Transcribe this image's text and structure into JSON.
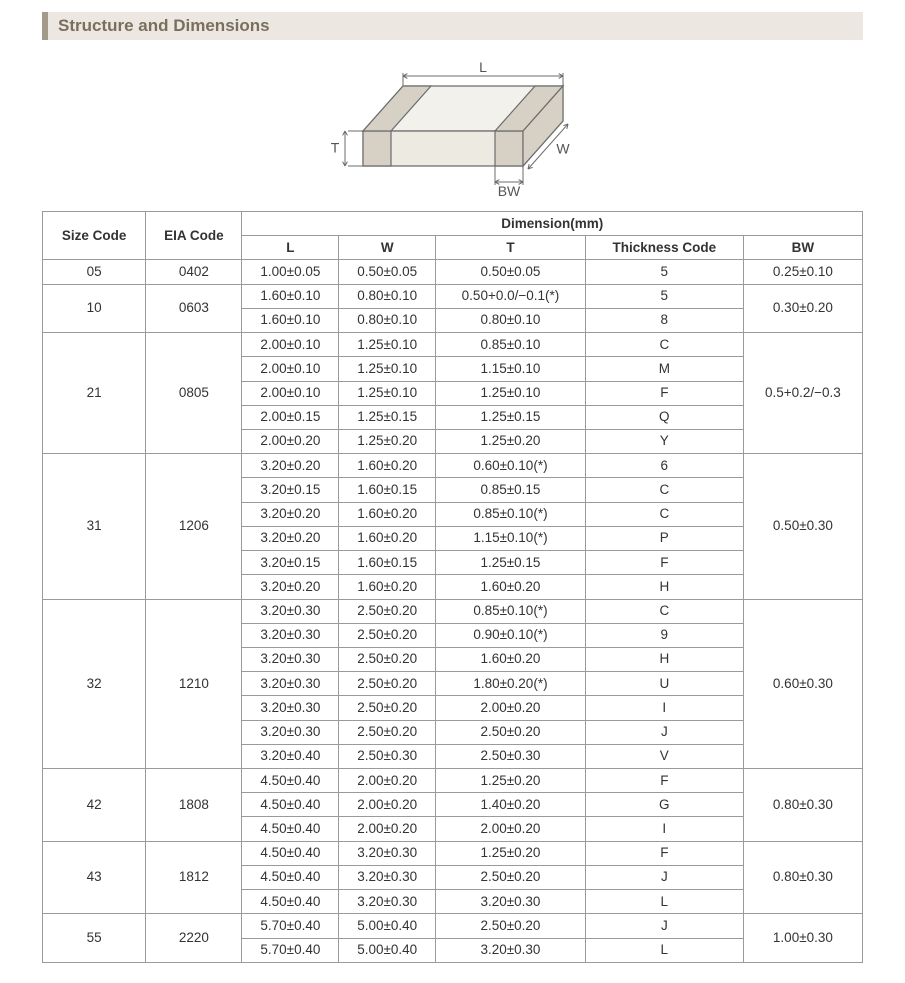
{
  "section_title": "Structure and Dimensions",
  "diagram_labels": {
    "L": "L",
    "W": "W",
    "T": "T",
    "BW": "BW"
  },
  "diagram": {
    "stroke": "#6b6b6b",
    "fill_top": "#f3f1ec",
    "fill_side": "#e4e0d6",
    "fill_front": "#edeae2",
    "fill_band": "#d6d1c4",
    "label_color": "#555",
    "label_fontsize": 14
  },
  "table": {
    "header": {
      "size_code": "Size Code",
      "eia_code": "EIA Code",
      "dimension_group": "Dimension(mm)",
      "L": "L",
      "W": "W",
      "T": "T",
      "thickness_code": "Thickness Code",
      "BW": "BW"
    },
    "groups": [
      {
        "size_code": "05",
        "eia_code": "0402",
        "bw": "0.25±0.10",
        "rows": [
          {
            "L": "1.00±0.05",
            "W": "0.50±0.05",
            "T": "0.50±0.05",
            "tc": "5"
          }
        ]
      },
      {
        "size_code": "10",
        "eia_code": "0603",
        "bw": "0.30±0.20",
        "rows": [
          {
            "L": "1.60±0.10",
            "W": "0.80±0.10",
            "T": "0.50+0.0/−0.1(*)",
            "tc": "5"
          },
          {
            "L": "1.60±0.10",
            "W": "0.80±0.10",
            "T": "0.80±0.10",
            "tc": "8"
          }
        ]
      },
      {
        "size_code": "21",
        "eia_code": "0805",
        "bw": "0.5+0.2/−0.3",
        "rows": [
          {
            "L": "2.00±0.10",
            "W": "1.25±0.10",
            "T": "0.85±0.10",
            "tc": "C"
          },
          {
            "L": "2.00±0.10",
            "W": "1.25±0.10",
            "T": "1.15±0.10",
            "tc": "M"
          },
          {
            "L": "2.00±0.10",
            "W": "1.25±0.10",
            "T": "1.25±0.10",
            "tc": "F"
          },
          {
            "L": "2.00±0.15",
            "W": "1.25±0.15",
            "T": "1.25±0.15",
            "tc": "Q"
          },
          {
            "L": "2.00±0.20",
            "W": "1.25±0.20",
            "T": "1.25±0.20",
            "tc": "Y"
          }
        ]
      },
      {
        "size_code": "31",
        "eia_code": "1206",
        "bw": "0.50±0.30",
        "rows": [
          {
            "L": "3.20±0.20",
            "W": "1.60±0.20",
            "T": "0.60±0.10(*)",
            "tc": "6"
          },
          {
            "L": "3.20±0.15",
            "W": "1.60±0.15",
            "T": "0.85±0.15",
            "tc": "C"
          },
          {
            "L": "3.20±0.20",
            "W": "1.60±0.20",
            "T": "0.85±0.10(*)",
            "tc": "C"
          },
          {
            "L": "3.20±0.20",
            "W": "1.60±0.20",
            "T": "1.15±0.10(*)",
            "tc": "P"
          },
          {
            "L": "3.20±0.15",
            "W": "1.60±0.15",
            "T": "1.25±0.15",
            "tc": "F"
          },
          {
            "L": "3.20±0.20",
            "W": "1.60±0.20",
            "T": "1.60±0.20",
            "tc": "H"
          }
        ]
      },
      {
        "size_code": "32",
        "eia_code": "1210",
        "bw": "0.60±0.30",
        "rows": [
          {
            "L": "3.20±0.30",
            "W": "2.50±0.20",
            "T": "0.85±0.10(*)",
            "tc": "C"
          },
          {
            "L": "3.20±0.30",
            "W": "2.50±0.20",
            "T": "0.90±0.10(*)",
            "tc": "9"
          },
          {
            "L": "3.20±0.30",
            "W": "2.50±0.20",
            "T": "1.60±0.20",
            "tc": "H"
          },
          {
            "L": "3.20±0.30",
            "W": "2.50±0.20",
            "T": "1.80±0.20(*)",
            "tc": "U"
          },
          {
            "L": "3.20±0.30",
            "W": "2.50±0.20",
            "T": "2.00±0.20",
            "tc": "I"
          },
          {
            "L": "3.20±0.30",
            "W": "2.50±0.20",
            "T": "2.50±0.20",
            "tc": "J"
          },
          {
            "L": "3.20±0.40",
            "W": "2.50±0.30",
            "T": "2.50±0.30",
            "tc": "V"
          }
        ]
      },
      {
        "size_code": "42",
        "eia_code": "1808",
        "bw": "0.80±0.30",
        "rows": [
          {
            "L": "4.50±0.40",
            "W": "2.00±0.20",
            "T": "1.25±0.20",
            "tc": "F"
          },
          {
            "L": "4.50±0.40",
            "W": "2.00±0.20",
            "T": "1.40±0.20",
            "tc": "G"
          },
          {
            "L": "4.50±0.40",
            "W": "2.00±0.20",
            "T": "2.00±0.20",
            "tc": "I"
          }
        ]
      },
      {
        "size_code": "43",
        "eia_code": "1812",
        "bw": "0.80±0.30",
        "rows": [
          {
            "L": "4.50±0.40",
            "W": "3.20±0.30",
            "T": "1.25±0.20",
            "tc": "F"
          },
          {
            "L": "4.50±0.40",
            "W": "3.20±0.30",
            "T": "2.50±0.20",
            "tc": "J"
          },
          {
            "L": "4.50±0.40",
            "W": "3.20±0.30",
            "T": "3.20±0.30",
            "tc": "L"
          }
        ]
      },
      {
        "size_code": "55",
        "eia_code": "2220",
        "bw": "1.00±0.30",
        "rows": [
          {
            "L": "5.70±0.40",
            "W": "5.00±0.40",
            "T": "2.50±0.20",
            "tc": "J"
          },
          {
            "L": "5.70±0.40",
            "W": "5.00±0.40",
            "T": "3.20±0.30",
            "tc": "L"
          }
        ]
      }
    ]
  }
}
